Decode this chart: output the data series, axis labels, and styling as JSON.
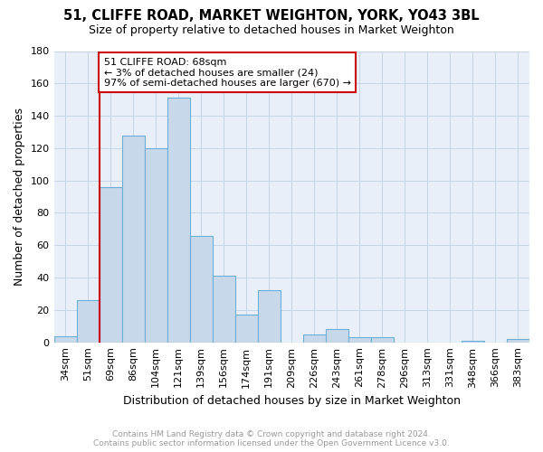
{
  "title": "51, CLIFFE ROAD, MARKET WEIGHTON, YORK, YO43 3BL",
  "subtitle": "Size of property relative to detached houses in Market Weighton",
  "xlabel": "Distribution of detached houses by size in Market Weighton",
  "ylabel": "Number of detached properties",
  "footer_line1": "Contains HM Land Registry data © Crown copyright and database right 2024.",
  "footer_line2": "Contains public sector information licensed under the Open Government Licence v3.0.",
  "categories": [
    "34sqm",
    "51sqm",
    "69sqm",
    "86sqm",
    "104sqm",
    "121sqm",
    "139sqm",
    "156sqm",
    "174sqm",
    "191sqm",
    "209sqm",
    "226sqm",
    "243sqm",
    "261sqm",
    "278sqm",
    "296sqm",
    "313sqm",
    "331sqm",
    "348sqm",
    "366sqm",
    "383sqm"
  ],
  "values": [
    4,
    26,
    96,
    128,
    120,
    151,
    66,
    41,
    17,
    32,
    0,
    5,
    8,
    3,
    3,
    0,
    0,
    0,
    1,
    0,
    2
  ],
  "bar_color": "#c8d8eb",
  "bar_edge_color": "#6baed6",
  "bar_edge_width": 0.8,
  "grid_color": "#c5d5e5",
  "background_color": "#e8eff8",
  "ylim": [
    0,
    180
  ],
  "yticks": [
    0,
    20,
    40,
    60,
    80,
    100,
    120,
    140,
    160,
    180
  ],
  "property_bin_index": 2,
  "annotation_text": "51 CLIFFE ROAD: 68sqm\n← 3% of detached houses are smaller (24)\n97% of semi-detached houses are larger (670) →",
  "annotation_box_color": "#ffffff",
  "annotation_box_edge_color": "#cc0000",
  "red_line_color": "#cc0000",
  "title_fontsize": 10.5,
  "subtitle_fontsize": 9,
  "tick_fontsize": 8,
  "ylabel_fontsize": 9,
  "xlabel_fontsize": 9,
  "footer_fontsize": 6.5,
  "footer_color": "#999999"
}
